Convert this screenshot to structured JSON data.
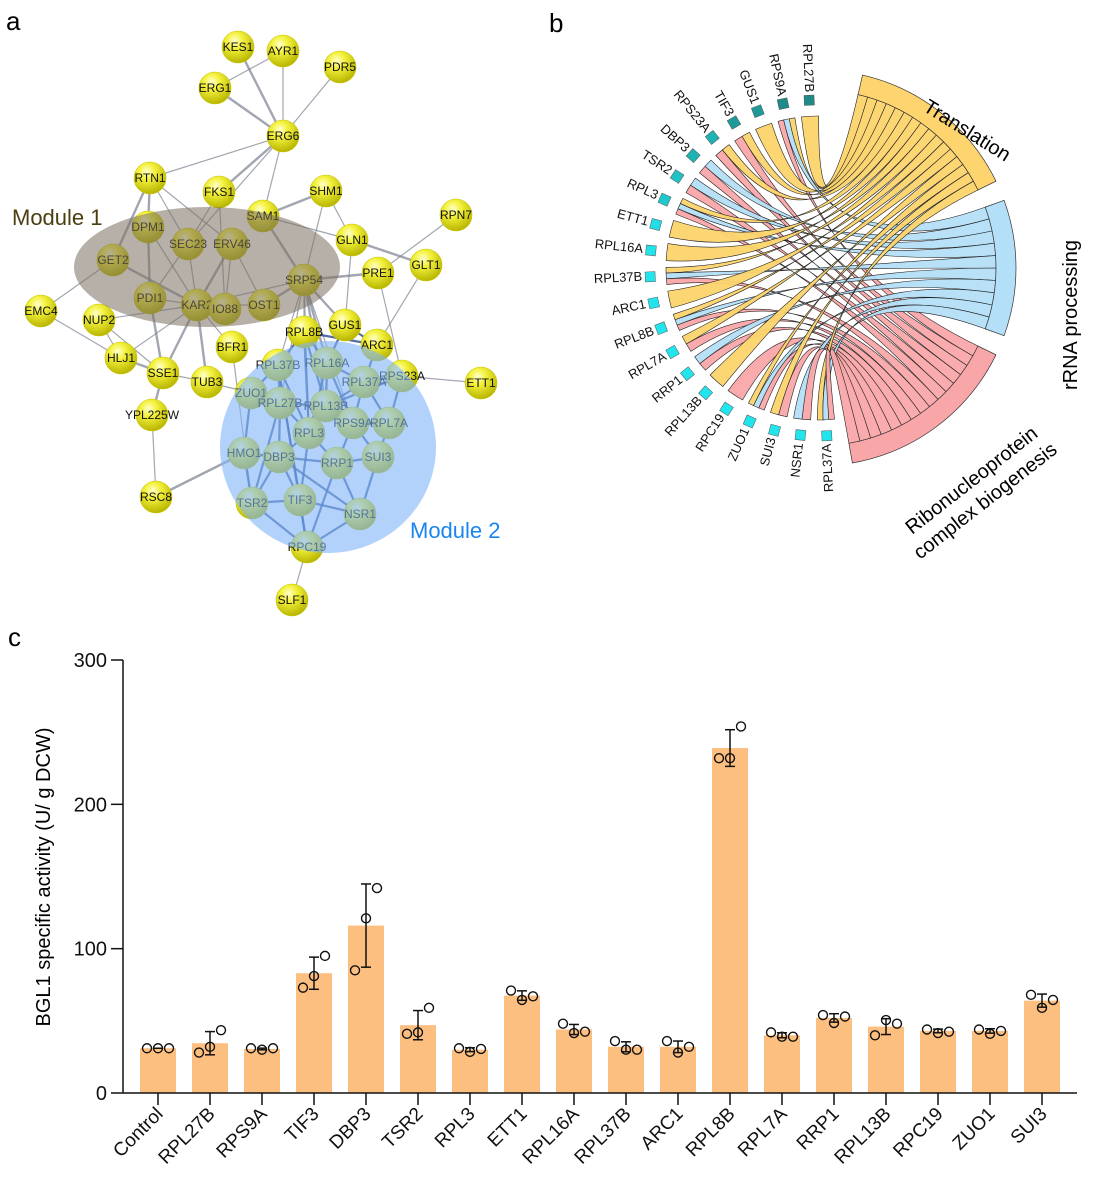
{
  "panels": {
    "a": "a",
    "b": "b",
    "c": "c"
  },
  "network": {
    "module1_label": "Module 1",
    "module2_label": "Module 2",
    "colors": {
      "node": "#f0ee2a",
      "module1": "#7a7060",
      "module2": "#7fb4f8",
      "module1_text": "#4a3f10",
      "module2_text": "#1a85f0"
    },
    "nodes": [
      "KES1",
      "AYR1",
      "PDR5",
      "ERG1",
      "ERG6",
      "RTN1",
      "FKS1",
      "SHM1",
      "SAM1",
      "RPN7",
      "DPM1",
      "SEC23",
      "ERV46",
      "GET2",
      "GLN1",
      "GLT1",
      "PRE1",
      "SRP54",
      "PDI1",
      "KAR2",
      "IO88",
      "OST1",
      "EMC4",
      "NUP2",
      "GUS1",
      "RPL8B",
      "ARC1",
      "BFR1",
      "HLJ1",
      "SSE1",
      "RPL16A",
      "RPL37B",
      "TUB3",
      "RPS23A",
      "ETT1",
      "RPL37A",
      "ZUO1",
      "RPL27B",
      "RPL13B",
      "YPL225W",
      "RPS9A",
      "RPL7A",
      "RPL3",
      "HMO1",
      "DBP3",
      "RRP1",
      "SUI3",
      "RSC8",
      "TSR2",
      "TIF3",
      "NSR1",
      "RPC19",
      "SLF1"
    ],
    "edges": [
      [
        "KES1",
        "ERG6"
      ],
      [
        "AYR1",
        "ERG6"
      ],
      [
        "PDR5",
        "ERG6"
      ],
      [
        "ERG1",
        "ERG6"
      ],
      [
        "ERG1",
        "AYR1"
      ],
      [
        "ERG6",
        "RTN1"
      ],
      [
        "ERG6",
        "FKS1"
      ],
      [
        "ERG6",
        "SAM1"
      ],
      [
        "ERG6",
        "SEC23"
      ],
      [
        "RTN1",
        "DPM1"
      ],
      [
        "RTN1",
        "SEC23"
      ],
      [
        "RTN1",
        "ERV46"
      ],
      [
        "RTN1",
        "GET2"
      ],
      [
        "FKS1",
        "SEC23"
      ],
      [
        "FKS1",
        "IO88"
      ],
      [
        "SHM1",
        "SAM1"
      ],
      [
        "SHM1",
        "GLN1"
      ],
      [
        "SHM1",
        "SRP54"
      ],
      [
        "SAM1",
        "SRP54"
      ],
      [
        "SAM1",
        "GLN1"
      ],
      [
        "RPN7",
        "PRE1"
      ],
      [
        "GLN1",
        "GLT1"
      ],
      [
        "GLN1",
        "GUS1"
      ],
      [
        "GLT1",
        "ARC1"
      ],
      [
        "PRE1",
        "SRP54"
      ],
      [
        "PRE1",
        "RPS23A"
      ],
      [
        "DPM1",
        "KAR2"
      ],
      [
        "DPM1",
        "PDI1"
      ],
      [
        "SEC23",
        "KAR2"
      ],
      [
        "SEC23",
        "PDI1"
      ],
      [
        "ERV46",
        "KAR2"
      ],
      [
        "ERV46",
        "OST1"
      ],
      [
        "ERV46",
        "IO88"
      ],
      [
        "GET2",
        "KAR2"
      ],
      [
        "GET2",
        "EMC4"
      ],
      [
        "PDI1",
        "KAR2"
      ],
      [
        "PDI1",
        "SSE1"
      ],
      [
        "KAR2",
        "IO88"
      ],
      [
        "KAR2",
        "OST1"
      ],
      [
        "KAR2",
        "SSE1"
      ],
      [
        "KAR2",
        "HLJ1"
      ],
      [
        "KAR2",
        "NUP2"
      ],
      [
        "KAR2",
        "TUB3"
      ],
      [
        "KAR2",
        "SRP54"
      ],
      [
        "KAR2",
        "BFR1"
      ],
      [
        "OST1",
        "SRP54"
      ],
      [
        "NUP2",
        "HLJ1"
      ],
      [
        "NUP2",
        "SSE1"
      ],
      [
        "HLJ1",
        "SSE1"
      ],
      [
        "EMC4",
        "HLJ1"
      ],
      [
        "SSE1",
        "TUB3"
      ],
      [
        "SSE1",
        "YPL225W"
      ],
      [
        "TUB3",
        "ZUO1"
      ],
      [
        "YPL225W",
        "RSC8"
      ],
      [
        "RSC8",
        "HMO1"
      ],
      [
        "BFR1",
        "TSR2"
      ],
      [
        "SRP54",
        "RPL8B"
      ],
      [
        "SRP54",
        "RPL16A"
      ],
      [
        "SRP54",
        "RPL37B"
      ],
      [
        "SRP54",
        "RPL27B"
      ],
      [
        "SRP54",
        "RPL13B"
      ],
      [
        "SRP54",
        "RPL3"
      ],
      [
        "SRP54",
        "RPS9A"
      ],
      [
        "SRP54",
        "GUS1"
      ],
      [
        "RPS23A",
        "ETT1"
      ],
      [
        "RPC19",
        "SLF1"
      ],
      [
        "RPL8B",
        "RPL16A"
      ],
      [
        "RPL8B",
        "RPL37B"
      ],
      [
        "RPL8B",
        "RPL13B"
      ],
      [
        "RPL8B",
        "RPL3"
      ],
      [
        "RPL8B",
        "ARC1"
      ],
      [
        "GUS1",
        "ARC1"
      ],
      [
        "GUS1",
        "RPL16A"
      ],
      [
        "ARC1",
        "RPL37A"
      ],
      [
        "RPL16A",
        "RPL37A"
      ],
      [
        "RPL16A",
        "RPL13B"
      ],
      [
        "RPL16A",
        "RPS9A"
      ],
      [
        "RPL16A",
        "RPL3"
      ],
      [
        "RPL37B",
        "RPL27B"
      ],
      [
        "RPL37B",
        "RPL3"
      ],
      [
        "RPL37B",
        "ZUO1"
      ],
      [
        "RPL37A",
        "RPS23A"
      ],
      [
        "RPL37A",
        "RPL7A"
      ],
      [
        "RPL37A",
        "RPS9A"
      ],
      [
        "RPL37A",
        "RPL13B"
      ],
      [
        "RPS23A",
        "RPL7A"
      ],
      [
        "RPS23A",
        "RPL13B"
      ],
      [
        "ZUO1",
        "RPL27B"
      ],
      [
        "ZUO1",
        "HMO1"
      ],
      [
        "RPL27B",
        "RPL13B"
      ],
      [
        "RPL27B",
        "RPL3"
      ],
      [
        "RPL27B",
        "DBP3"
      ],
      [
        "RPL13B",
        "RPS9A"
      ],
      [
        "RPL13B",
        "RPL3"
      ],
      [
        "RPS9A",
        "RPL7A"
      ],
      [
        "RPS9A",
        "SUI3"
      ],
      [
        "RPS9A",
        "RRP1"
      ],
      [
        "RPL7A",
        "SUI3"
      ],
      [
        "RPL3",
        "DBP3"
      ],
      [
        "RPL3",
        "RRP1"
      ],
      [
        "RPL3",
        "TIF3"
      ],
      [
        "HMO1",
        "DBP3"
      ],
      [
        "HMO1",
        "TSR2"
      ],
      [
        "DBP3",
        "TSR2"
      ],
      [
        "DBP3",
        "TIF3"
      ],
      [
        "DBP3",
        "RRP1"
      ],
      [
        "DBP3",
        "NSR1"
      ],
      [
        "RRP1",
        "NSR1"
      ],
      [
        "RRP1",
        "RPC19"
      ],
      [
        "RRP1",
        "SUI3"
      ],
      [
        "SUI3",
        "NSR1"
      ],
      [
        "TSR2",
        "TIF3"
      ],
      [
        "TSR2",
        "RPC19"
      ],
      [
        "TIF3",
        "RPC19"
      ],
      [
        "TIF3",
        "NSR1"
      ],
      [
        "NSR1",
        "RPC19"
      ],
      [
        "TSR2",
        "RPL27B"
      ],
      [
        "TIF3",
        "RPL37B"
      ],
      [
        "RPC19",
        "RPL37B"
      ]
    ]
  },
  "chord": {
    "terms": [
      {
        "name": "Translation",
        "color": "#fdd46d"
      },
      {
        "name": "rRNA processing",
        "color": "#b4dff8"
      },
      {
        "name": "Ribonucleoprotein complex biogenesis",
        "line1": "Ribonucleoprotein",
        "line2": "complex biogenesis",
        "color": "#f9a6a9"
      }
    ],
    "genes": [
      {
        "name": "RPL27B",
        "color": "#1f8a88",
        "terms": [
          0
        ]
      },
      {
        "name": "RPS9A",
        "color": "#1f8a88",
        "terms": [
          0,
          1,
          2
        ]
      },
      {
        "name": "GUS1",
        "color": "#1f9a98",
        "terms": [
          0
        ]
      },
      {
        "name": "TIF3",
        "color": "#1f9a98",
        "terms": [
          0,
          2
        ]
      },
      {
        "name": "RPS23A",
        "color": "#1fb4b4",
        "terms": [
          0,
          2
        ]
      },
      {
        "name": "DBP3",
        "color": "#1fb4b4",
        "terms": [
          1,
          2
        ]
      },
      {
        "name": "TSR2",
        "color": "#1fc2c4",
        "terms": [
          1,
          2
        ]
      },
      {
        "name": "RPL3",
        "color": "#1fc8cc",
        "terms": [
          0,
          1,
          2
        ]
      },
      {
        "name": "ETT1",
        "color": "#22dde6",
        "terms": [
          0
        ]
      },
      {
        "name": "RPL16A",
        "color": "#22e2ea",
        "terms": [
          0
        ]
      },
      {
        "name": "RPL37B",
        "color": "#22e4ec",
        "terms": [
          0,
          1,
          2
        ]
      },
      {
        "name": "ARC1",
        "color": "#22e4ec",
        "terms": [
          0
        ]
      },
      {
        "name": "RPL8B",
        "color": "#22e4ec",
        "terms": [
          0,
          1,
          2
        ]
      },
      {
        "name": "RPL7A",
        "color": "#22e4ec",
        "terms": [
          0,
          2
        ]
      },
      {
        "name": "RRP1",
        "color": "#22e4ec",
        "terms": [
          1,
          2
        ]
      },
      {
        "name": "RPL13B",
        "color": "#22e4ec",
        "terms": [
          0
        ]
      },
      {
        "name": "RPC19",
        "color": "#22e4ec",
        "terms": [
          2
        ]
      },
      {
        "name": "ZUO1",
        "color": "#22e4ec",
        "terms": [
          0,
          1,
          2
        ]
      },
      {
        "name": "SUI3",
        "color": "#22e4ec",
        "terms": [
          0,
          2
        ]
      },
      {
        "name": "NSR1",
        "color": "#22e4ec",
        "terms": [
          1,
          2
        ]
      },
      {
        "name": "RPL37A",
        "color": "#22e4ec",
        "terms": [
          0,
          1,
          2
        ]
      }
    ]
  },
  "chart_data": {
    "type": "bar",
    "title": "",
    "xlabel": "",
    "ylabel": "BGL1 specific activity (U/ g DCW)",
    "ylim": [
      0,
      300
    ],
    "yticks": [
      0,
      100,
      200,
      300
    ],
    "grid": false,
    "bar_color": "#fdbf80",
    "error_bars": "SD",
    "categories": [
      "Control",
      "RPL27B",
      "RPS9A",
      "TIF3",
      "DBP3",
      "TSR2",
      "RPL3",
      "ETT1",
      "RPL16A",
      "RPL37B",
      "ARC1",
      "RPL8B",
      "RPL7A",
      "RRP1",
      "RPL13B",
      "RPC19",
      "ZUO1",
      "SUI3"
    ],
    "values": [
      31,
      34.5,
      30.5,
      83,
      116,
      47,
      30,
      67.5,
      44,
      32,
      32,
      239,
      40,
      52,
      46,
      43,
      43,
      64
    ],
    "replicates": [
      [
        31,
        31,
        31
      ],
      [
        28,
        32,
        43.5
      ],
      [
        31,
        30,
        31
      ],
      [
        73,
        81,
        95
      ],
      [
        85,
        121,
        142
      ],
      [
        41,
        42,
        59
      ],
      [
        31,
        28.5,
        30.5
      ],
      [
        71,
        64.5,
        67
      ],
      [
        48,
        41.5,
        42.5
      ],
      [
        36,
        30,
        30
      ],
      [
        36,
        28,
        32
      ],
      [
        232,
        232,
        254
      ],
      [
        42,
        39,
        39
      ],
      [
        54,
        48.5,
        53
      ],
      [
        40,
        50.5,
        48
      ],
      [
        44,
        41.5,
        42.5
      ],
      [
        44,
        41,
        43
      ],
      [
        68,
        59,
        64.5
      ]
    ]
  }
}
